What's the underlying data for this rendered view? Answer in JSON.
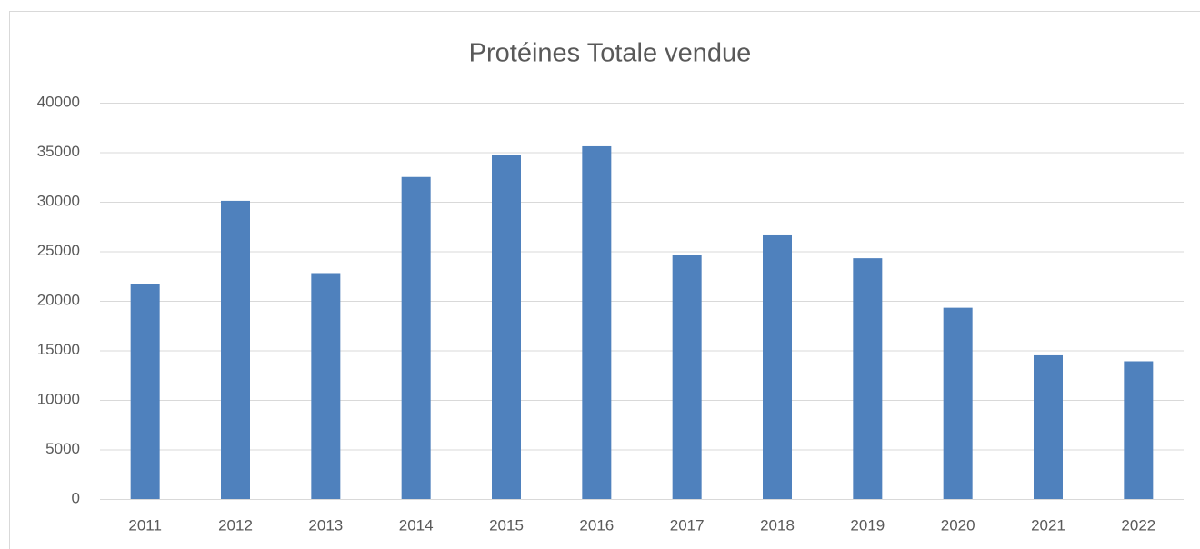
{
  "chart_data": {
    "type": "bar",
    "title": "Protéines Totale vendue",
    "categories": [
      "2011",
      "2012",
      "2013",
      "2014",
      "2015",
      "2016",
      "2017",
      "2018",
      "2019",
      "2020",
      "2021",
      "2022"
    ],
    "values": [
      21700,
      30100,
      22800,
      32500,
      34700,
      35600,
      24600,
      26700,
      24300,
      19300,
      14500,
      13900
    ],
    "color": "#4f81bd",
    "ylim": [
      0,
      40000
    ],
    "yticks": [
      0,
      5000,
      10000,
      15000,
      20000,
      25000,
      30000,
      35000,
      40000
    ],
    "grid": true
  }
}
